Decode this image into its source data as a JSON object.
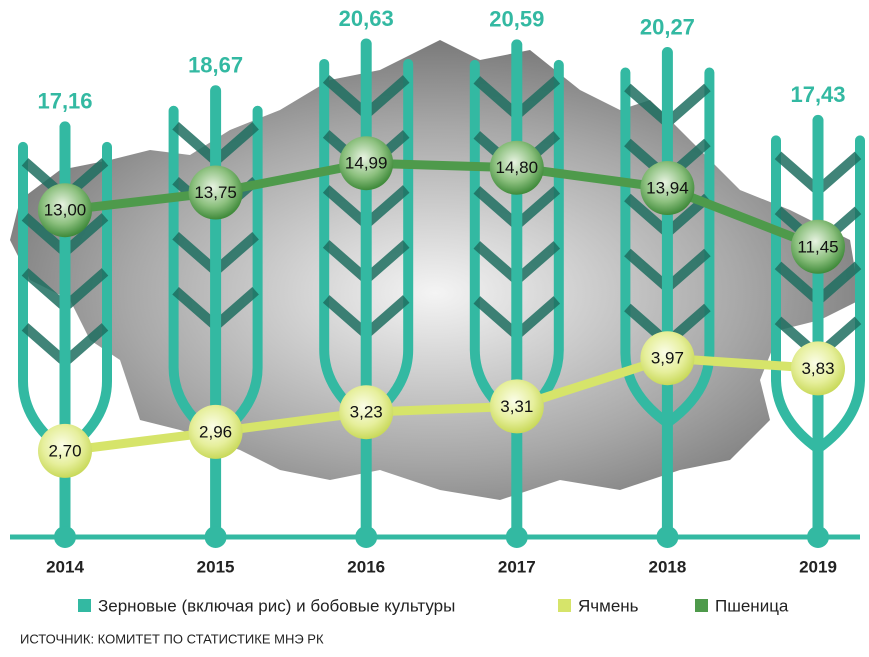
{
  "chart_data": {
    "type": "combo",
    "categories": [
      "2014",
      "2015",
      "2016",
      "2017",
      "2018",
      "2019"
    ],
    "series": [
      {
        "name": "Зерновые (включая рис) и бобовые культуры",
        "type": "bar",
        "color": "#33b9a2",
        "values": [
          17.16,
          18.67,
          20.63,
          20.59,
          20.27,
          17.43
        ],
        "value_labels": [
          "17,16",
          "18,67",
          "20,63",
          "20,59",
          "20,27",
          "17,43"
        ]
      },
      {
        "name": "Ячмень",
        "type": "line",
        "color": "#d6e46a",
        "values": [
          2.7,
          2.96,
          3.23,
          3.31,
          3.97,
          3.83
        ],
        "value_labels": [
          "2,70",
          "2,96",
          "3,23",
          "3,31",
          "3,97",
          "3,83"
        ]
      },
      {
        "name": "Пшеница",
        "type": "line",
        "color": "#4e9a4b",
        "values": [
          13.0,
          13.75,
          14.99,
          14.8,
          13.94,
          11.45
        ],
        "value_labels": [
          "13,00",
          "13,75",
          "14,99",
          "14,80",
          "13,94",
          "11,45"
        ]
      }
    ],
    "source": "ИСТОЧНИК: КОМИТЕТ ПО СТАТИСТИКЕ МНЭ РК"
  }
}
